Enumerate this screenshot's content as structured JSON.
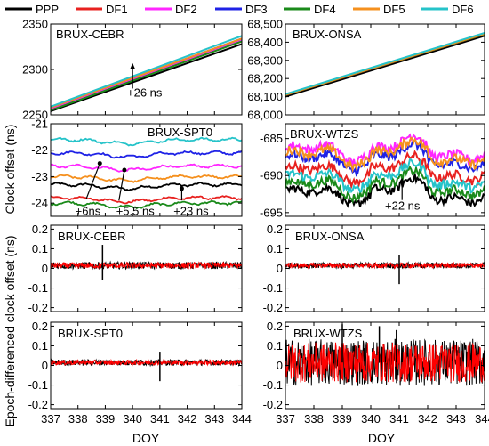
{
  "legend": [
    {
      "label": "PPP",
      "color": "#000000"
    },
    {
      "label": "DF1",
      "color": "#e8211f"
    },
    {
      "label": "DF2",
      "color": "#ff26ff"
    },
    {
      "label": "DF3",
      "color": "#1f22e6"
    },
    {
      "label": "DF4",
      "color": "#1a8a1a"
    },
    {
      "label": "DF5",
      "color": "#f5901e"
    },
    {
      "label": "DF6",
      "color": "#25c3c9"
    }
  ],
  "axes": {
    "ylabel_top": "Clock offset (ns)",
    "ylabel_bottom": "Epoch-differenced clock offset (ns)",
    "xlabel_left": "DOY",
    "xlabel_right": "DOY"
  },
  "chart_data": [
    {
      "id": "p1",
      "type": "line",
      "title": "BRUX-CEBR",
      "xlim": [
        337,
        344
      ],
      "ylim": [
        2250,
        2350
      ],
      "yticks": [
        "2250",
        "2300",
        "2350"
      ],
      "series_start": [
        2254,
        2256,
        2257,
        2258,
        2255,
        2258,
        2259
      ],
      "series_end": [
        2328,
        2331,
        2333,
        2334,
        2331,
        2334,
        2337
      ],
      "annotations": [
        "+26 ns"
      ]
    },
    {
      "id": "p2",
      "type": "line",
      "title": "BRUX-ONSA",
      "xlim": [
        337,
        344
      ],
      "ylim": [
        68000,
        68500
      ],
      "yticks": [
        "68,000",
        "68,100",
        "68,200",
        "68,300",
        "68,400",
        "68,500"
      ],
      "series_start": [
        68100,
        68108,
        68110,
        68112,
        68109,
        68110,
        68114
      ],
      "series_end": [
        68435,
        68443,
        68446,
        68449,
        68444,
        68446,
        68451
      ],
      "annotations": []
    },
    {
      "id": "p3",
      "type": "line",
      "title": "BRUX-SPT0",
      "xlim": [
        337,
        344
      ],
      "ylim": [
        -24.5,
        -21
      ],
      "yticks": [
        "-24",
        "-23",
        "-22",
        "-21"
      ],
      "series_levels": [
        -23.3,
        -23.8,
        -22.6,
        -22.1,
        -24.0,
        -23.0,
        -21.6
      ],
      "annotations": [
        "+6ns",
        "+5.5 ns",
        "+23 ns"
      ]
    },
    {
      "id": "p4",
      "type": "line",
      "title": "BRUX-WTZS",
      "xlim": [
        337,
        344
      ],
      "ylim": [
        -695.5,
        -683
      ],
      "yticks": [
        "-695",
        "-690",
        "-685"
      ],
      "series_levels": [
        -692.6,
        -689.6,
        -686.8,
        -688.0,
        -691.6,
        -687.4,
        -690.6
      ],
      "annotations": [
        "+22 ns"
      ]
    },
    {
      "id": "p5",
      "type": "line",
      "title": "BRUX-CEBR",
      "xlim": [
        337,
        344
      ],
      "ylim": [
        -0.22,
        0.22
      ],
      "yticks": [
        "-0.2",
        "-0.1",
        "0",
        "0.1",
        "0.2"
      ],
      "noise_amplitude": 0.018,
      "spikes": [
        {
          "x": 338.9,
          "y": 0.12
        },
        {
          "x": 338.9,
          "y": -0.06
        }
      ]
    },
    {
      "id": "p6",
      "type": "line",
      "title": "BRUX-ONSA",
      "xlim": [
        337,
        344
      ],
      "ylim": [
        -0.22,
        0.22
      ],
      "yticks": [
        "-0.2",
        "-0.1",
        "0",
        "0.1",
        "0.2"
      ],
      "noise_amplitude": 0.015,
      "spikes": [
        {
          "x": 341.0,
          "y": -0.08
        },
        {
          "x": 341.0,
          "y": 0.07
        }
      ]
    },
    {
      "id": "p7",
      "type": "line",
      "title": "BRUX-SPT0",
      "xlim": [
        337,
        344
      ],
      "ylim": [
        -0.22,
        0.22
      ],
      "yticks": [
        "-0.2",
        "-0.1",
        "0",
        "0.1",
        "0.2"
      ],
      "noise_amplitude": 0.015,
      "spikes": [
        {
          "x": 341.0,
          "y": -0.08
        },
        {
          "x": 341.0,
          "y": 0.07
        }
      ]
    },
    {
      "id": "p8",
      "type": "line",
      "title": "BRUX-WTZS",
      "xlim": [
        337,
        344
      ],
      "ylim": [
        -0.22,
        0.22
      ],
      "yticks": [
        "-0.2",
        "-0.1",
        "0",
        "0.1",
        "0.2"
      ],
      "noise_amplitude": 0.12,
      "spikes": [
        {
          "x": 340.3,
          "y": 0.2
        },
        {
          "x": 340.9,
          "y": 0.18
        },
        {
          "x": 339.0,
          "y": 0.21
        }
      ]
    }
  ],
  "xticks": [
    "337",
    "338",
    "339",
    "340",
    "341",
    "342",
    "343",
    "344"
  ]
}
